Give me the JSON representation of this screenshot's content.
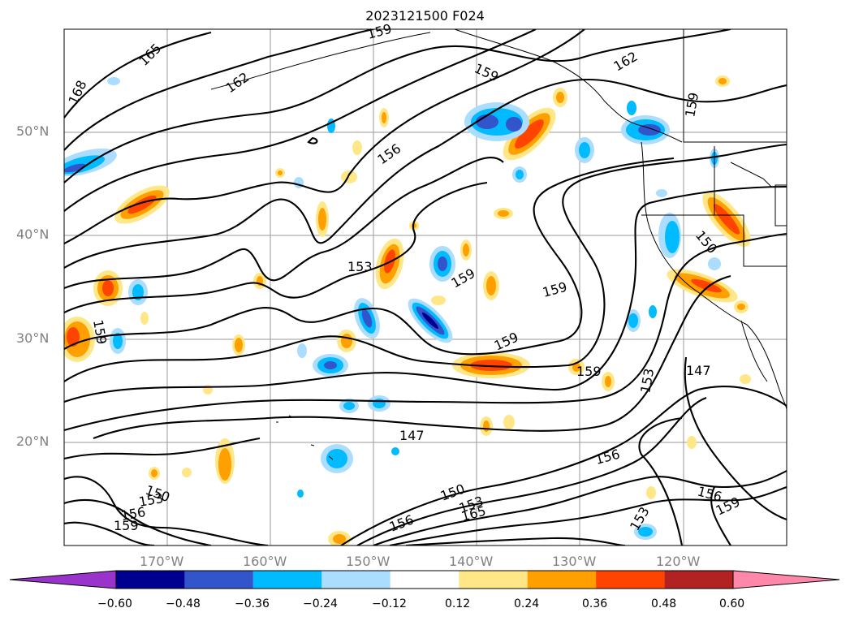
{
  "title": "2023121500 F024",
  "lat_labels": [
    "50°N",
    "40°N",
    "30°N",
    "20°N"
  ],
  "lon_labels": [
    "170°W",
    "160°W",
    "150°W",
    "140°W",
    "130°W",
    "120°W"
  ],
  "colorbar": {
    "ticks": [
      "−0.60",
      "−0.48",
      "−0.36",
      "−0.24",
      "−0.12",
      "0.12",
      "0.24",
      "0.36",
      "0.48",
      "0.60"
    ],
    "colors": [
      "#9933cc",
      "#000090",
      "#3355cc",
      "#00bbff",
      "#aaddff",
      "#ffffff",
      "#ffe788",
      "#ffa000",
      "#ff4400",
      "#b22222",
      "#ff88aa"
    ]
  },
  "contour_labels": [
    "165",
    "168",
    "162",
    "159",
    "162",
    "159",
    "159",
    "156",
    "153",
    "159",
    "159",
    "153",
    "159",
    "150",
    "147",
    "147",
    "156",
    "153",
    "156",
    "159",
    "150",
    "153",
    "156",
    "159",
    "150",
    "156",
    "159",
    "165",
    "153",
    "159"
  ]
}
